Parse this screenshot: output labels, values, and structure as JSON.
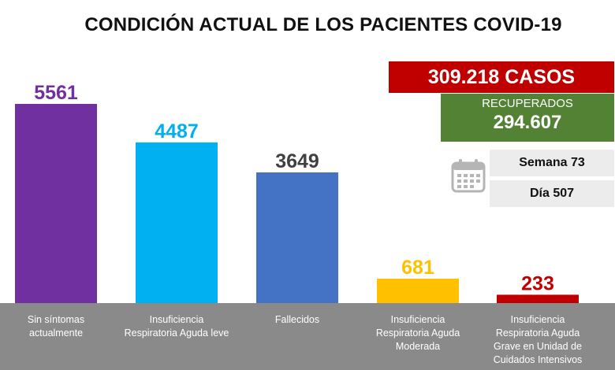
{
  "title": "CONDICIÓN ACTUAL DE LOS PACIENTES COVID-19",
  "cases_text": "309.218 CASOS",
  "recovered": {
    "label": "RECUPERADOS",
    "value": "294.607"
  },
  "week_text": "Semana 73",
  "day_text": "Día 507",
  "icons": {
    "calendar": "calendar-icon"
  },
  "colors": {
    "cases_box": "#c00000",
    "recovered_box": "#548235",
    "category_band": "#8a8a8a"
  },
  "chart_data": {
    "type": "bar",
    "title": "CONDICIÓN ACTUAL DE LOS PACIENTES COVID-19",
    "categories": [
      [
        "Sin síntomas",
        "actualmente"
      ],
      [
        "Insuficiencia",
        "Respiratoria Aguda leve"
      ],
      [
        "Fallecidos"
      ],
      [
        "Insuficiencia",
        "Respiratoria Aguda",
        "Moderada"
      ],
      [
        "Insuficiencia",
        "Respiratoria Aguda",
        "Grave en Unidad de",
        "Cuidados Intensivos"
      ]
    ],
    "values": [
      5561,
      4487,
      3649,
      681,
      233
    ],
    "bar_colors": [
      "#7030a0",
      "#00b0f0",
      "#4472c4",
      "#ffc000",
      "#c00000"
    ],
    "label_colors": [
      "#7030a0",
      "#00b0f0",
      "#404040",
      "#ffc000",
      "#c00000"
    ],
    "ylim": [
      0,
      5561
    ],
    "grid": false,
    "xlabel": "",
    "ylabel": ""
  }
}
